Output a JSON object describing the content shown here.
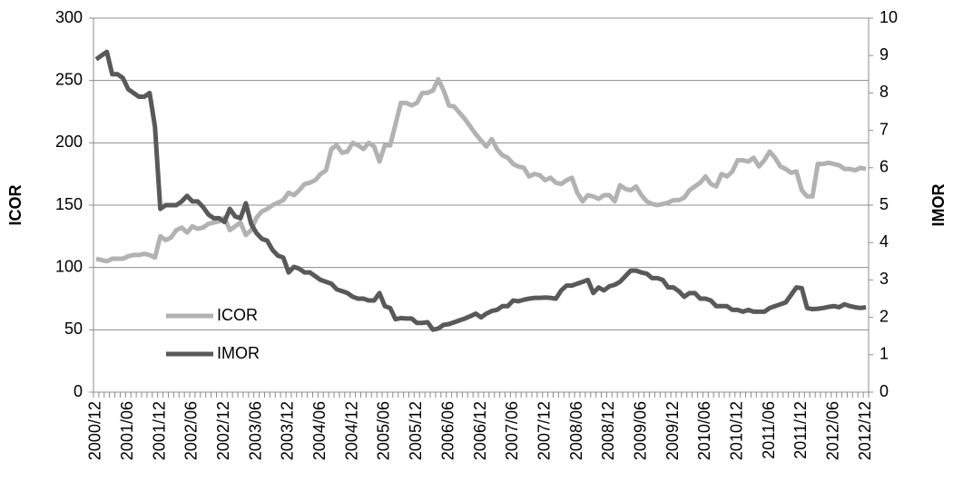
{
  "chart_data": {
    "type": "line",
    "y_label": "ICOR",
    "y2_label": "IMOR",
    "categories": [
      "2000/12",
      null,
      null,
      null,
      null,
      null,
      "2001/06",
      null,
      null,
      null,
      null,
      null,
      "2001/12",
      null,
      null,
      null,
      null,
      null,
      "2002/06",
      null,
      null,
      null,
      null,
      null,
      "2002/12",
      null,
      null,
      null,
      null,
      null,
      "2003/06",
      null,
      null,
      null,
      null,
      null,
      "2003/12",
      null,
      null,
      null,
      null,
      null,
      "2004/06",
      null,
      null,
      null,
      null,
      null,
      "2004/12",
      null,
      null,
      null,
      null,
      null,
      "2005/06",
      null,
      null,
      null,
      null,
      null,
      "2005/12",
      null,
      null,
      null,
      null,
      null,
      "2006/06",
      null,
      null,
      null,
      null,
      null,
      "2006/12",
      null,
      null,
      null,
      null,
      null,
      "2007/06",
      null,
      null,
      null,
      null,
      null,
      "2007/12",
      null,
      null,
      null,
      null,
      null,
      "2008/06",
      null,
      null,
      null,
      null,
      null,
      "2008/12",
      null,
      null,
      null,
      null,
      null,
      "2009/06",
      null,
      null,
      null,
      null,
      null,
      "2009/12",
      null,
      null,
      null,
      null,
      null,
      "2010/06",
      null,
      null,
      null,
      null,
      null,
      "2010/12",
      null,
      null,
      null,
      null,
      null,
      "2011/06",
      null,
      null,
      null,
      null,
      null,
      "2011/12",
      null,
      null,
      null,
      null,
      null,
      "2012/06",
      null,
      null,
      null,
      null,
      null,
      "2012/12"
    ],
    "series": [
      {
        "name": "ICOR",
        "color": "#b2b2b2",
        "axis": "y",
        "values": [
          107,
          106,
          105,
          107,
          107,
          107,
          109,
          110,
          110,
          111,
          110,
          108,
          125,
          122,
          124,
          130,
          132,
          128,
          133,
          131,
          132,
          135,
          136,
          137,
          140,
          130,
          133,
          136,
          126,
          130,
          140,
          145,
          147,
          150,
          152,
          154,
          160,
          158,
          162,
          167,
          168,
          170,
          175,
          178,
          195,
          198,
          192,
          193,
          200,
          198,
          195,
          200,
          197,
          185,
          198,
          198,
          215,
          232,
          232,
          230,
          232,
          240,
          240,
          242,
          251,
          242,
          230,
          229,
          224,
          219,
          213,
          207,
          202,
          197,
          203,
          195,
          190,
          188,
          183,
          181,
          180,
          173,
          175,
          174,
          170,
          172,
          168,
          167,
          170,
          172,
          160,
          153,
          158,
          157,
          155,
          158,
          158,
          153,
          166,
          163,
          162,
          165,
          158,
          153,
          151,
          150,
          151,
          152,
          154,
          154,
          156,
          162,
          165,
          168,
          173,
          167,
          165,
          175,
          173,
          177,
          186,
          186,
          185,
          188,
          181,
          186,
          193,
          188,
          181,
          179,
          176,
          177,
          162,
          157,
          157,
          183,
          183,
          184,
          183,
          182,
          179,
          179,
          178,
          180,
          179
        ]
      },
      {
        "name": "IMOR",
        "color": "#595959",
        "axis": "y2",
        "values": [
          8.9,
          9.0,
          9.1,
          8.5,
          8.5,
          8.4,
          8.1,
          8.0,
          7.9,
          7.9,
          8.0,
          7.1,
          4.9,
          5.0,
          5.0,
          5.0,
          5.1,
          5.25,
          5.1,
          5.1,
          4.95,
          4.75,
          4.65,
          4.65,
          4.55,
          4.9,
          4.7,
          4.65,
          5.05,
          4.5,
          4.25,
          4.1,
          4.05,
          3.8,
          3.65,
          3.6,
          3.2,
          3.35,
          3.3,
          3.2,
          3.2,
          3.1,
          3.0,
          2.95,
          2.9,
          2.75,
          2.7,
          2.65,
          2.55,
          2.5,
          2.5,
          2.45,
          2.45,
          2.65,
          2.3,
          2.25,
          1.95,
          1.98,
          1.97,
          1.97,
          1.85,
          1.85,
          1.87,
          1.67,
          1.7,
          1.8,
          1.82,
          1.87,
          1.92,
          1.97,
          2.03,
          2.1,
          2.0,
          2.1,
          2.17,
          2.2,
          2.3,
          2.3,
          2.45,
          2.43,
          2.47,
          2.5,
          2.52,
          2.52,
          2.53,
          2.52,
          2.5,
          2.72,
          2.85,
          2.85,
          2.9,
          2.95,
          3.0,
          2.65,
          2.8,
          2.72,
          2.83,
          2.87,
          2.95,
          3.1,
          3.25,
          3.25,
          3.2,
          3.17,
          3.05,
          3.05,
          3.0,
          2.8,
          2.8,
          2.7,
          2.55,
          2.65,
          2.65,
          2.5,
          2.5,
          2.45,
          2.3,
          2.3,
          2.3,
          2.2,
          2.2,
          2.15,
          2.2,
          2.15,
          2.15,
          2.15,
          2.25,
          2.3,
          2.35,
          2.4,
          2.6,
          2.8,
          2.78,
          2.25,
          2.22,
          2.23,
          2.25,
          2.28,
          2.3,
          2.27,
          2.35,
          2.3,
          2.27,
          2.25,
          2.27
        ]
      }
    ],
    "ylim": [
      0,
      300
    ],
    "yticks": [
      0,
      50,
      100,
      150,
      200,
      250,
      300
    ],
    "y2lim": [
      0,
      10
    ],
    "y2ticks": [
      0,
      1,
      2,
      3,
      4,
      5,
      6,
      7,
      8,
      9,
      10
    ],
    "grid": true,
    "legend": "lower-left"
  }
}
